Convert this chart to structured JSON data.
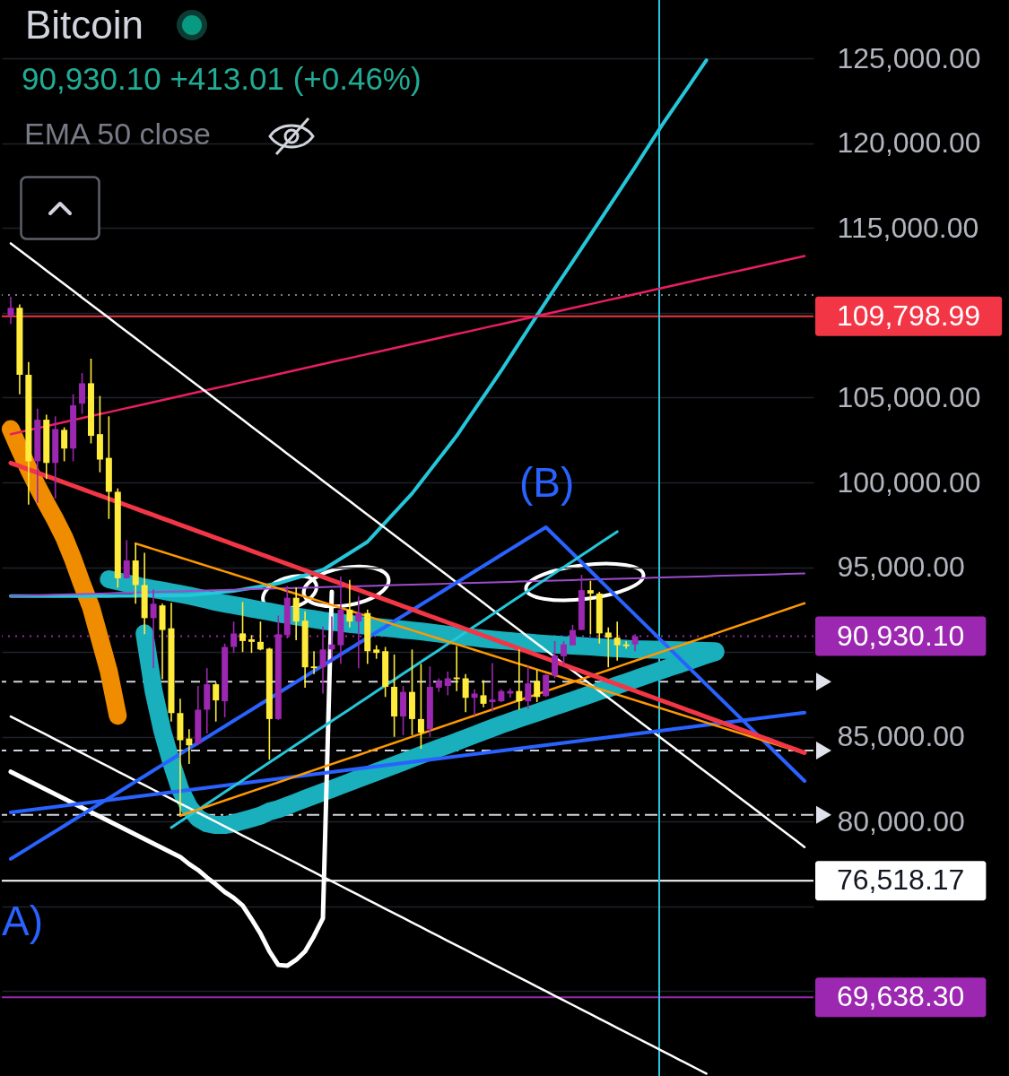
{
  "chart_data": {
    "type": "candlestick",
    "title": "Bitcoin",
    "subtitle": "90,930.10 +413.01 (+0.46%)",
    "annotations": [
      "EMA 50 close",
      "(B)",
      "A)"
    ],
    "categories": [
      null,
      null,
      null,
      null,
      null,
      null,
      null,
      null,
      null,
      null,
      null,
      null,
      null,
      null,
      null,
      null,
      null,
      null,
      null,
      null,
      null,
      null,
      null,
      null,
      null,
      null,
      null,
      null,
      null,
      null,
      null,
      null,
      null,
      null,
      null,
      null,
      null,
      null,
      null,
      null,
      null,
      null,
      null,
      null,
      null,
      null,
      null,
      null,
      null,
      null,
      null,
      null,
      null,
      null,
      null,
      null,
      null,
      null,
      null,
      null,
      null,
      null,
      null,
      null,
      null,
      null,
      null,
      null,
      null,
      null,
      null,
      null,
      null,
      null,
      null,
      null,
      null,
      null,
      null,
      null,
      null,
      null,
      null,
      null,
      null,
      null,
      null,
      null,
      null,
      null
    ],
    "ohlc": [
      [
        109850,
        110950,
        109350,
        110300
      ],
      [
        110300,
        110500,
        105200,
        106350
      ],
      [
        106350,
        107100,
        98700,
        101250
      ],
      [
        101250,
        104350,
        98800,
        103700
      ],
      [
        103700,
        104000,
        100200,
        101150
      ],
      [
        101150,
        103900,
        99050,
        103150
      ],
      [
        103100,
        103250,
        101250,
        102000
      ],
      [
        102000,
        105200,
        101250,
        104550
      ],
      [
        104650,
        106450,
        104050,
        105850
      ],
      [
        105850,
        107300,
        102300,
        102750
      ],
      [
        102850,
        105100,
        100600,
        101350
      ],
      [
        101450,
        103900,
        97850,
        99450
      ],
      [
        99450,
        99650,
        93800,
        94350
      ],
      [
        94350,
        96600,
        94350,
        95400
      ],
      [
        95400,
        96400,
        92850,
        93950
      ],
      [
        93950,
        95850,
        91050,
        92000
      ],
      [
        92000,
        93700,
        89050,
        92850
      ],
      [
        92750,
        92850,
        88400,
        91300
      ],
      [
        91400,
        92900,
        85900,
        86400
      ],
      [
        86400,
        87250,
        80400,
        84800
      ],
      [
        84900,
        85450,
        83400,
        84500
      ],
      [
        84600,
        88000,
        84500,
        86600
      ],
      [
        86600,
        89050,
        85200,
        88100
      ],
      [
        88100,
        88200,
        85900,
        87150
      ],
      [
        87100,
        90500,
        86150,
        90300
      ],
      [
        90300,
        91800,
        89950,
        91100
      ],
      [
        91100,
        92950,
        90000,
        90650
      ],
      [
        90750,
        91000,
        89950,
        90600
      ],
      [
        90600,
        91800,
        90100,
        90150
      ],
      [
        90200,
        90250,
        83650,
        86050
      ],
      [
        86050,
        92150,
        86000,
        91050
      ],
      [
        91000,
        93900,
        90800,
        93200
      ],
      [
        93200,
        93800,
        90700,
        91800
      ],
      [
        91850,
        92400,
        87900,
        89100
      ],
      [
        89150,
        90050,
        88700,
        89050
      ],
      [
        89100,
        91500,
        87550,
        90150
      ],
      [
        90150,
        92100,
        89400,
        90450
      ],
      [
        90400,
        94450,
        89300,
        92500
      ],
      [
        92500,
        94250,
        91450,
        91800
      ],
      [
        91800,
        93300,
        89050,
        92300
      ],
      [
        92300,
        92500,
        89300,
        90050
      ],
      [
        90150,
        90400,
        89600,
        89950
      ],
      [
        90050,
        90300,
        87350,
        87950
      ],
      [
        87950,
        89850,
        85000,
        86200
      ],
      [
        86200,
        88000,
        85100,
        87650
      ],
      [
        87650,
        90150,
        85100,
        86050
      ],
      [
        86050,
        89300,
        84300,
        85250
      ],
      [
        85450,
        89150,
        85000,
        87950
      ],
      [
        87900,
        88450,
        87650,
        88300
      ],
      [
        88000,
        88850,
        87450,
        88450
      ],
      [
        88500,
        90350,
        87700,
        88400
      ],
      [
        88450,
        88700,
        86450,
        87300
      ],
      [
        87300,
        87800,
        86250,
        87550
      ],
      [
        87450,
        88350,
        86750,
        86950
      ],
      [
        87050,
        89350,
        86500,
        87200
      ],
      [
        87100,
        87800,
        87050,
        87700
      ],
      [
        87550,
        87850,
        87300,
        87700
      ],
      [
        87700,
        90150,
        86600,
        87100
      ],
      [
        87100,
        89150,
        86650,
        88150
      ],
      [
        88300,
        88950,
        87050,
        87350
      ],
      [
        87400,
        88700,
        87350,
        88650
      ],
      [
        88600,
        90650,
        88450,
        89800
      ],
      [
        89750,
        90650,
        89200,
        90450
      ],
      [
        90400,
        91600,
        90400,
        91300
      ],
      [
        91300,
        94550,
        91300,
        93650
      ],
      [
        93650,
        94200,
        91050,
        93450
      ],
      [
        93450,
        93550,
        90500,
        91100
      ],
      [
        91150,
        91450,
        89100,
        90850
      ],
      [
        90850,
        91800,
        89500,
        90400
      ],
      [
        90450,
        90650,
        90200,
        90350
      ],
      [
        90450,
        91050,
        90050,
        90930.1
      ],
      null,
      null,
      null,
      null,
      null,
      null,
      null,
      null,
      null,
      null,
      null,
      null,
      null,
      null,
      null,
      null,
      null,
      null,
      null
    ],
    "colors": [
      "#9c27b0",
      "#ffeb3b",
      "#ffeb3b",
      "#9c27b0",
      "#ffeb3b",
      "#9c27b0",
      "#ffeb3b",
      "#9c27b0",
      "#9c27b0",
      "#ffeb3b",
      "#ffeb3b",
      "#ffeb3b",
      "#ffeb3b",
      "#9c27b0",
      "#ffeb3b",
      "#ffeb3b",
      "#9c27b0",
      "#ffeb3b",
      "#ffeb3b",
      "#ffeb3b",
      "#ffeb3b",
      "#9c27b0",
      "#9c27b0",
      "#ffeb3b",
      "#9c27b0",
      "#9c27b0",
      "#ffeb3b",
      "#ffeb3b",
      "#ffeb3b",
      "#ffeb3b",
      "#9c27b0",
      "#9c27b0",
      "#ffeb3b",
      "#ffeb3b",
      "#ffeb3b",
      "#9c27b0",
      "#9c27b0",
      "#9c27b0",
      "#ffeb3b",
      "#9c27b0",
      "#ffeb3b",
      "#ffeb3b",
      "#ffeb3b",
      "#ffeb3b",
      "#9c27b0",
      "#ffeb3b",
      "#ffeb3b",
      "#9c27b0",
      "#9c27b0",
      "#9c27b0",
      "#ffeb3b",
      "#ffeb3b",
      "#9c27b0",
      "#ffeb3b",
      "#9c27b0",
      "#9c27b0",
      "#9c27b0",
      "#ffeb3b",
      "#9c27b0",
      "#ffeb3b",
      "#9c27b0",
      "#9c27b0",
      "#9c27b0",
      "#9c27b0",
      "#9c27b0",
      "#ffeb3b",
      "#ffeb3b",
      "#ffeb3b",
      "#ffeb3b",
      "#ffeb3b",
      "#9c27b0",
      null,
      null,
      null,
      null,
      null,
      null,
      null,
      null,
      null,
      null,
      null,
      null,
      null,
      null,
      null,
      null,
      null,
      null,
      null
    ],
    "series": [
      {
        "type": "line",
        "color": "#19afbd",
        "values": [
          null,
          null,
          null,
          null,
          null,
          null,
          null,
          null,
          null,
          null,
          null,
          94290,
          94170,
          94050,
          93930,
          93810,
          93710,
          93620,
          93520,
          93430,
          93330,
          93210,
          93090,
          92960,
          92860,
          92770,
          92670,
          92570,
          92470,
          92380,
          92280,
          92190,
          92110,
          92020,
          91940,
          91850,
          91790,
          91730,
          91660,
          91600,
          91540,
          91480,
          91430,
          91380,
          91320,
          91270,
          91220,
          91150,
          91090,
          91020,
          90950,
          90900,
          90850,
          90790,
          90740,
          90690,
          90650,
          90600,
          90560,
          90520,
          90480,
          90450,
          90410,
          90380,
          90350,
          90320,
          90290,
          90250,
          90220,
          90190,
          90160,
          90150,
          90140,
          90130,
          90110,
          90100,
          90090,
          90080,
          90060,
          90050,
          null,
          null,
          null,
          null,
          null,
          null,
          null,
          null,
          null,
          null
        ]
      },
      {
        "type": "line",
        "color": "#19afbd",
        "values": [
          null,
          null,
          null,
          null,
          null,
          null,
          null,
          null,
          null,
          null,
          null,
          null,
          null,
          null,
          null,
          91100,
          87750,
          85350,
          83500,
          81900,
          80850,
          80200,
          79900,
          79800,
          79800,
          79900,
          80050,
          80200,
          80350,
          80600,
          80740,
          80940,
          81140,
          81340,
          81540,
          81740,
          81930,
          82130,
          82330,
          82530,
          82730,
          82930,
          83130,
          83330,
          83530,
          83730,
          83930,
          84130,
          84330,
          84520,
          84720,
          84920,
          85120,
          85320,
          85520,
          85720,
          85900,
          86080,
          86260,
          86430,
          86610,
          86790,
          86970,
          87150,
          87330,
          87510,
          87690,
          87860,
          88040,
          88220,
          88400,
          88580,
          88760,
          88940,
          89120,
          89290,
          89470,
          89650,
          89830,
          90000,
          null,
          null,
          null,
          null,
          null,
          null,
          null,
          null,
          null,
          null
        ]
      },
      {
        "type": "line",
        "color": "#ef8c00",
        "values": [
          103150,
          101950,
          100800,
          99750,
          98750,
          97800,
          96750,
          95450,
          94000,
          92650,
          90750,
          88850,
          86250,
          null,
          null,
          null,
          null,
          null,
          null,
          null,
          null,
          null,
          null,
          null,
          null,
          null,
          null,
          null,
          null,
          null,
          null,
          null,
          null,
          null,
          null,
          null,
          null,
          null,
          null,
          null,
          null,
          null,
          null,
          null,
          null,
          null,
          null,
          null,
          null,
          null,
          null,
          null,
          null,
          null,
          null,
          null,
          null,
          null,
          null,
          null,
          null,
          null,
          null,
          null,
          null,
          null,
          null,
          null,
          null,
          null,
          null,
          null,
          null,
          null,
          null,
          null,
          null,
          null,
          null,
          null,
          null,
          null,
          null,
          null,
          null,
          null,
          null,
          null,
          null,
          null
        ]
      },
      {
        "type": "line",
        "color": "#26c6da",
        "values": [
          93300,
          93300,
          93300,
          93300,
          93300,
          93300,
          93300,
          93300,
          93300,
          93300,
          93300,
          93305,
          93310,
          93315,
          93320,
          93325,
          93330,
          93335,
          93340,
          93345,
          93350,
          93400,
          93450,
          93500,
          93550,
          93600,
          93690,
          93780,
          93870,
          93960,
          94050,
          94210,
          94370,
          94530,
          94690,
          94850,
          95180,
          95510,
          95840,
          96170,
          96500,
          97070,
          97640,
          98210,
          98780,
          99350,
          100030,
          100710,
          101390,
          102070,
          102750,
          103520,
          104290,
          105060,
          105830,
          106600,
          107410,
          108220,
          109030,
          109840,
          110650,
          111440,
          112230,
          113020,
          113810,
          114600,
          115400,
          116200,
          117000,
          117800,
          118600,
          119420,
          120230,
          121050,
          121820,
          122590,
          123360,
          124130,
          124900,
          null,
          null,
          null,
          null,
          null,
          null,
          null,
          null,
          null,
          null,
          null
        ]
      },
      {
        "type": "line",
        "color": "#9c4dcc",
        "values": [
          93300,
          93315,
          93330,
          93345,
          93360,
          93375,
          93390,
          93405,
          93420,
          93435,
          93450,
          93465,
          93480,
          93495,
          93510,
          93525,
          93540,
          93555,
          93570,
          93585,
          93600,
          93615,
          93630,
          93645,
          93660,
          93675,
          93690,
          93705,
          93720,
          93735,
          93750,
          93765,
          93780,
          93795,
          93810,
          93825,
          93840,
          93855,
          93870,
          93885,
          93900,
          93915,
          93930,
          93945,
          93960,
          93975,
          93990,
          94005,
          94020,
          94035,
          94050,
          94065,
          94080,
          94095,
          94110,
          94125,
          94140,
          94155,
          94170,
          94185,
          94200,
          94215,
          94230,
          94245,
          94260,
          94275,
          94290,
          94305,
          94320,
          94335,
          94350,
          94365,
          94380,
          94395,
          94410,
          94425,
          94440,
          94455,
          94470,
          94485,
          94500,
          94515,
          94530,
          94545,
          94560,
          94575,
          94590,
          94605,
          94620,
          94635
        ]
      },
      {
        "type": "line",
        "color": "#e91e63",
        "values": [
          102850,
          102968,
          103086,
          103204,
          103322,
          103440,
          103558,
          103676,
          103794,
          103912,
          104030,
          104148,
          104266,
          104384,
          104502,
          104620,
          104738,
          104856,
          104974,
          105092,
          105210,
          105328,
          105446,
          105564,
          105682,
          105800,
          105918,
          106036,
          106154,
          106272,
          106390,
          106508,
          106626,
          106744,
          106862,
          106980,
          107098,
          107216,
          107334,
          107452,
          107570,
          107688,
          107806,
          107924,
          108042,
          108160,
          108278,
          108396,
          108514,
          108632,
          108750,
          108868,
          108986,
          109104,
          109222,
          109340,
          109458,
          109576,
          109694,
          109812,
          109930,
          110048,
          110166,
          110284,
          110402,
          110520,
          110638,
          110756,
          110874,
          110992,
          111110,
          111228,
          111346,
          111464,
          111582,
          111700,
          111818,
          111936,
          112054,
          112172,
          112290,
          112408,
          112526,
          112644,
          112762,
          112880,
          112998,
          113116,
          113234,
          113352
        ]
      },
      {
        "type": "line",
        "color": "#ffffff",
        "values": [
          114100,
          113700,
          113300,
          112900,
          112500,
          112100,
          111700,
          111300,
          110900,
          110500,
          110100,
          109700,
          109300,
          108900,
          108500,
          108100,
          107700,
          107300,
          106900,
          106500,
          106100,
          105700,
          105300,
          104900,
          104500,
          104100,
          103700,
          103300,
          102900,
          102500,
          102100,
          101700,
          101300,
          100900,
          100500,
          100100,
          99700,
          99300,
          98900,
          98500,
          98100,
          97700,
          97300,
          96900,
          96500,
          96100,
          95700,
          95300,
          94900,
          94500,
          94100,
          93700,
          93300,
          92900,
          92500,
          92100,
          91700,
          91300,
          90900,
          90500,
          90100,
          89700,
          89300,
          88900,
          88500,
          88100,
          87700,
          87300,
          86900,
          86500,
          86100,
          85700,
          85300,
          84900,
          84500,
          84100,
          83700,
          83300,
          82900,
          82500,
          82100,
          81700,
          81300,
          80900,
          80500,
          80100,
          79700,
          79300,
          78900,
          78500
        ]
      },
      {
        "type": "line",
        "color": "#ffffff",
        "values": [
          86200,
          85930,
          85660,
          85390,
          85120,
          84850,
          84580,
          84310,
          84040,
          83770,
          83500,
          83230,
          82960,
          82690,
          82420,
          82150,
          81880,
          81610,
          81340,
          81070,
          80800,
          80530,
          80260,
          79990,
          79720,
          79450,
          79180,
          78910,
          78640,
          78370,
          78100,
          77830,
          77560,
          77290,
          77020,
          76750,
          76480,
          76210,
          75940,
          75670,
          75400,
          75130,
          74860,
          74590,
          74320,
          74050,
          73780,
          73510,
          73240,
          72970,
          72700,
          72430,
          72160,
          71890,
          71620,
          71350,
          71080,
          70810,
          70540,
          70270,
          70000,
          69730,
          69460,
          69190,
          68920,
          68650,
          68380,
          68110,
          67840,
          67570,
          67300,
          67030,
          66760,
          66490,
          66220,
          65950,
          65680,
          65410,
          65140,
          null,
          null,
          null,
          null,
          null,
          null,
          null,
          null,
          null,
          null,
          null
        ]
      },
      {
        "type": "line",
        "color": "#ffffff",
        "values": [
          82940,
          82670,
          82410,
          82140,
          81880,
          81620,
          81350,
          81090,
          80820,
          80560,
          80290,
          80030,
          79770,
          79500,
          79240,
          78970,
          78710,
          78440,
          78180,
          77920,
          77500,
          77150,
          76700,
          76300,
          75850,
          75500,
          75050,
          74250,
          73400,
          72350,
          71550,
          71500,
          71850,
          72350,
          73250,
          74300,
          93550,
          null,
          null,
          null,
          null,
          null,
          null,
          null,
          null,
          null,
          null,
          null,
          null,
          null,
          null,
          null,
          null,
          null,
          null,
          null,
          null,
          null,
          null,
          null,
          null,
          null,
          null,
          null,
          null,
          null,
          null,
          null,
          null,
          null,
          null,
          null,
          null,
          null,
          null,
          null,
          null,
          null,
          null,
          null,
          null,
          null,
          null,
          null,
          null,
          null,
          null,
          null,
          null,
          null
        ]
      },
      {
        "type": "line",
        "color": "#2962ff",
        "values": [
          77800,
          78126,
          78452,
          78778,
          79104,
          79430,
          79756,
          80082,
          80408,
          80734,
          81060,
          81386,
          81712,
          82038,
          82364,
          82690,
          83016,
          83342,
          83668,
          83994,
          84320,
          84646,
          84972,
          85298,
          85624,
          85950,
          86276,
          86602,
          86928,
          87254,
          87580,
          87906,
          88232,
          88558,
          88884,
          89210,
          89536,
          89862,
          90188,
          90514,
          90840,
          91166,
          91492,
          91818,
          92144,
          92470,
          92796,
          93122,
          93448,
          93774,
          94100,
          94426,
          94752,
          95078,
          95404,
          95730,
          96056,
          96382,
          96708,
          97034,
          97360,
          96844,
          96328,
          95812,
          95296,
          94780,
          94264,
          93748,
          93232,
          92716,
          92200,
          91684,
          91168,
          90652,
          90136,
          89620,
          89104,
          88588,
          88072,
          87556,
          87040,
          86524,
          86008,
          85492,
          84976,
          84460,
          83944,
          83428,
          82912,
          82396
        ]
      },
      {
        "type": "line",
        "color": "#2962ff",
        "values": [
          80550,
          80616,
          80682,
          80748,
          80814,
          80880,
          80946,
          81012,
          81078,
          81144,
          81210,
          81276,
          81342,
          81408,
          81474,
          81540,
          81606,
          81672,
          81738,
          81804,
          81870,
          81936,
          82002,
          82068,
          82134,
          82200,
          82266,
          82332,
          82398,
          82464,
          82530,
          82596,
          82662,
          82728,
          82794,
          82860,
          82926,
          82992,
          83058,
          83124,
          83190,
          83256,
          83322,
          83388,
          83454,
          83520,
          83586,
          83652,
          83718,
          83784,
          83850,
          83916,
          83982,
          84048,
          84114,
          84180,
          84246,
          84312,
          84378,
          84444,
          84510,
          84576,
          84642,
          84708,
          84774,
          84840,
          84906,
          84972,
          85038,
          85104,
          85170,
          85236,
          85302,
          85368,
          85434,
          85500,
          85566,
          85632,
          85698,
          85764,
          85830,
          85896,
          85962,
          86028,
          86094,
          86160,
          86226,
          86292,
          86358,
          86424
        ]
      },
      {
        "type": "line",
        "color": "#26c6da",
        "values": [
          null,
          null,
          null,
          null,
          null,
          null,
          null,
          null,
          null,
          null,
          null,
          null,
          null,
          null,
          null,
          null,
          null,
          null,
          79650,
          79999,
          80348,
          80697,
          81046,
          81395,
          81744,
          82093,
          82442,
          82791,
          83140,
          83489,
          83838,
          84187,
          84536,
          84885,
          85234,
          85583,
          85932,
          86281,
          86630,
          86979,
          87328,
          87677,
          88026,
          88375,
          88724,
          89073,
          89422,
          89771,
          90120,
          90469,
          90818,
          91167,
          91516,
          91865,
          92214,
          92563,
          92912,
          93261,
          93610,
          93959,
          94308,
          94657,
          95006,
          95355,
          95704,
          96053,
          96402,
          96751,
          97100,
          null,
          null,
          null,
          null,
          null,
          null,
          null,
          null,
          null,
          null,
          null,
          null,
          null,
          null,
          null,
          null,
          null,
          null,
          null,
          null,
          null
        ]
      },
      {
        "type": "line",
        "color": "#ff9800",
        "values": [
          null,
          null,
          null,
          null,
          null,
          null,
          null,
          null,
          null,
          null,
          null,
          null,
          null,
          null,
          96400,
          96235,
          96070,
          95905,
          95740,
          95575,
          95410,
          95245,
          95080,
          94915,
          94750,
          94585,
          94420,
          94255,
          94090,
          93925,
          93760,
          93595,
          93430,
          93265,
          93100,
          92935,
          92770,
          92605,
          92440,
          92275,
          92110,
          91945,
          91780,
          91615,
          91450,
          91285,
          91120,
          90955,
          90790,
          90625,
          90460,
          90295,
          90130,
          89965,
          89800,
          89635,
          89470,
          89305,
          89140,
          88975,
          88810,
          88645,
          88480,
          88315,
          88150,
          87985,
          87820,
          87655,
          87490,
          87325,
          87160,
          86995,
          86830,
          86665,
          86500,
          86335,
          86170,
          86005,
          85840,
          85675,
          85510,
          85345,
          85180,
          85015,
          84850,
          84685,
          84520,
          84355,
          84190,
          84025
        ]
      },
      {
        "type": "line",
        "color": "#ff9800",
        "values": [
          null,
          null,
          null,
          null,
          null,
          null,
          null,
          null,
          null,
          null,
          null,
          null,
          null,
          null,
          null,
          null,
          null,
          null,
          null,
          80350,
          80529,
          80708,
          80887,
          81066,
          81245,
          81424,
          81603,
          81782,
          81961,
          82140,
          82319,
          82498,
          82677,
          82856,
          83035,
          83214,
          83393,
          83572,
          83751,
          83930,
          84109,
          84288,
          84467,
          84646,
          84825,
          85004,
          85183,
          85362,
          85541,
          85720,
          85899,
          86078,
          86257,
          86436,
          86615,
          86794,
          86973,
          87152,
          87331,
          87510,
          87689,
          87868,
          88047,
          88226,
          88405,
          88584,
          88763,
          88942,
          89121,
          89300,
          89479,
          89658,
          89837,
          90016,
          90195,
          90374,
          90553,
          90732,
          90911,
          91090,
          91269,
          91448,
          91627,
          91806,
          91985,
          92164,
          92343,
          92522,
          92701,
          92880
        ]
      },
      {
        "type": "line",
        "color": "#f23645",
        "values": [
          101150,
          100958,
          100766,
          100574,
          100382,
          100190,
          99998,
          99806,
          99614,
          99422,
          99230,
          99038,
          98846,
          98654,
          98462,
          98270,
          98078,
          97886,
          97694,
          97502,
          97310,
          97118,
          96926,
          96734,
          96542,
          96350,
          96158,
          95966,
          95774,
          95582,
          95390,
          95198,
          95006,
          94814,
          94622,
          94430,
          94238,
          94046,
          93854,
          93662,
          93470,
          93278,
          93086,
          92894,
          92702,
          92510,
          92318,
          92126,
          91934,
          91742,
          91550,
          91358,
          91166,
          90974,
          90782,
          90590,
          90398,
          90206,
          90014,
          89822,
          89630,
          89438,
          89246,
          89054,
          88862,
          88670,
          88478,
          88286,
          88094,
          87902,
          87710,
          87518,
          87326,
          87134,
          86942,
          86750,
          86558,
          86366,
          86174,
          85982,
          85790,
          85598,
          85406,
          85214,
          85022,
          84830,
          84638,
          84446,
          84254,
          84062
        ]
      }
    ],
    "ref_lines": [
      {
        "axis": "y",
        "value": 111050,
        "color": "#787b86",
        "line_style": "dotted"
      },
      {
        "axis": "y",
        "value": 109798.99,
        "label": "109,798.99",
        "color": "#f23645"
      },
      {
        "axis": "y",
        "value": 90930.1,
        "label": "90,930.10",
        "color": "#9c27b0",
        "line_style": "dotted"
      },
      {
        "axis": "y",
        "value": 88250,
        "color": "#d1d4dc",
        "line_style": "dashed"
      },
      {
        "axis": "y",
        "value": 84200,
        "color": "#d1d4dc",
        "line_style": "dashed"
      },
      {
        "axis": "y",
        "value": 80400,
        "color": "#d1d4dc",
        "line_style": "dashdot"
      },
      {
        "axis": "y",
        "value": 76518.17,
        "label": "76,518.17",
        "color": "#ffffff"
      },
      {
        "axis": "y",
        "value": 69638.3,
        "label": "69,638.30",
        "color": "#9c27b0"
      }
    ],
    "ylim": [
      65000,
      128450
    ],
    "yticks": [
      {
        "value": 125000,
        "label": "125,000.00"
      },
      {
        "value": 120000,
        "label": "120,000.00"
      },
      {
        "value": 115000,
        "label": "115,000.00"
      },
      {
        "value": 110000,
        "label": null
      },
      {
        "value": 105000,
        "label": "105,000.00"
      },
      {
        "value": 100000,
        "label": "100,000.00"
      },
      {
        "value": 95000,
        "label": "95,000.00"
      },
      {
        "value": 90000,
        "label": null
      },
      {
        "value": 85000,
        "label": "85,000.00"
      },
      {
        "value": 80000,
        "label": "80,000.00"
      },
      {
        "value": 75000,
        "label": null
      },
      {
        "value": 70000,
        "label": null
      }
    ],
    "grid": "y",
    "tick_labels": "y"
  }
}
